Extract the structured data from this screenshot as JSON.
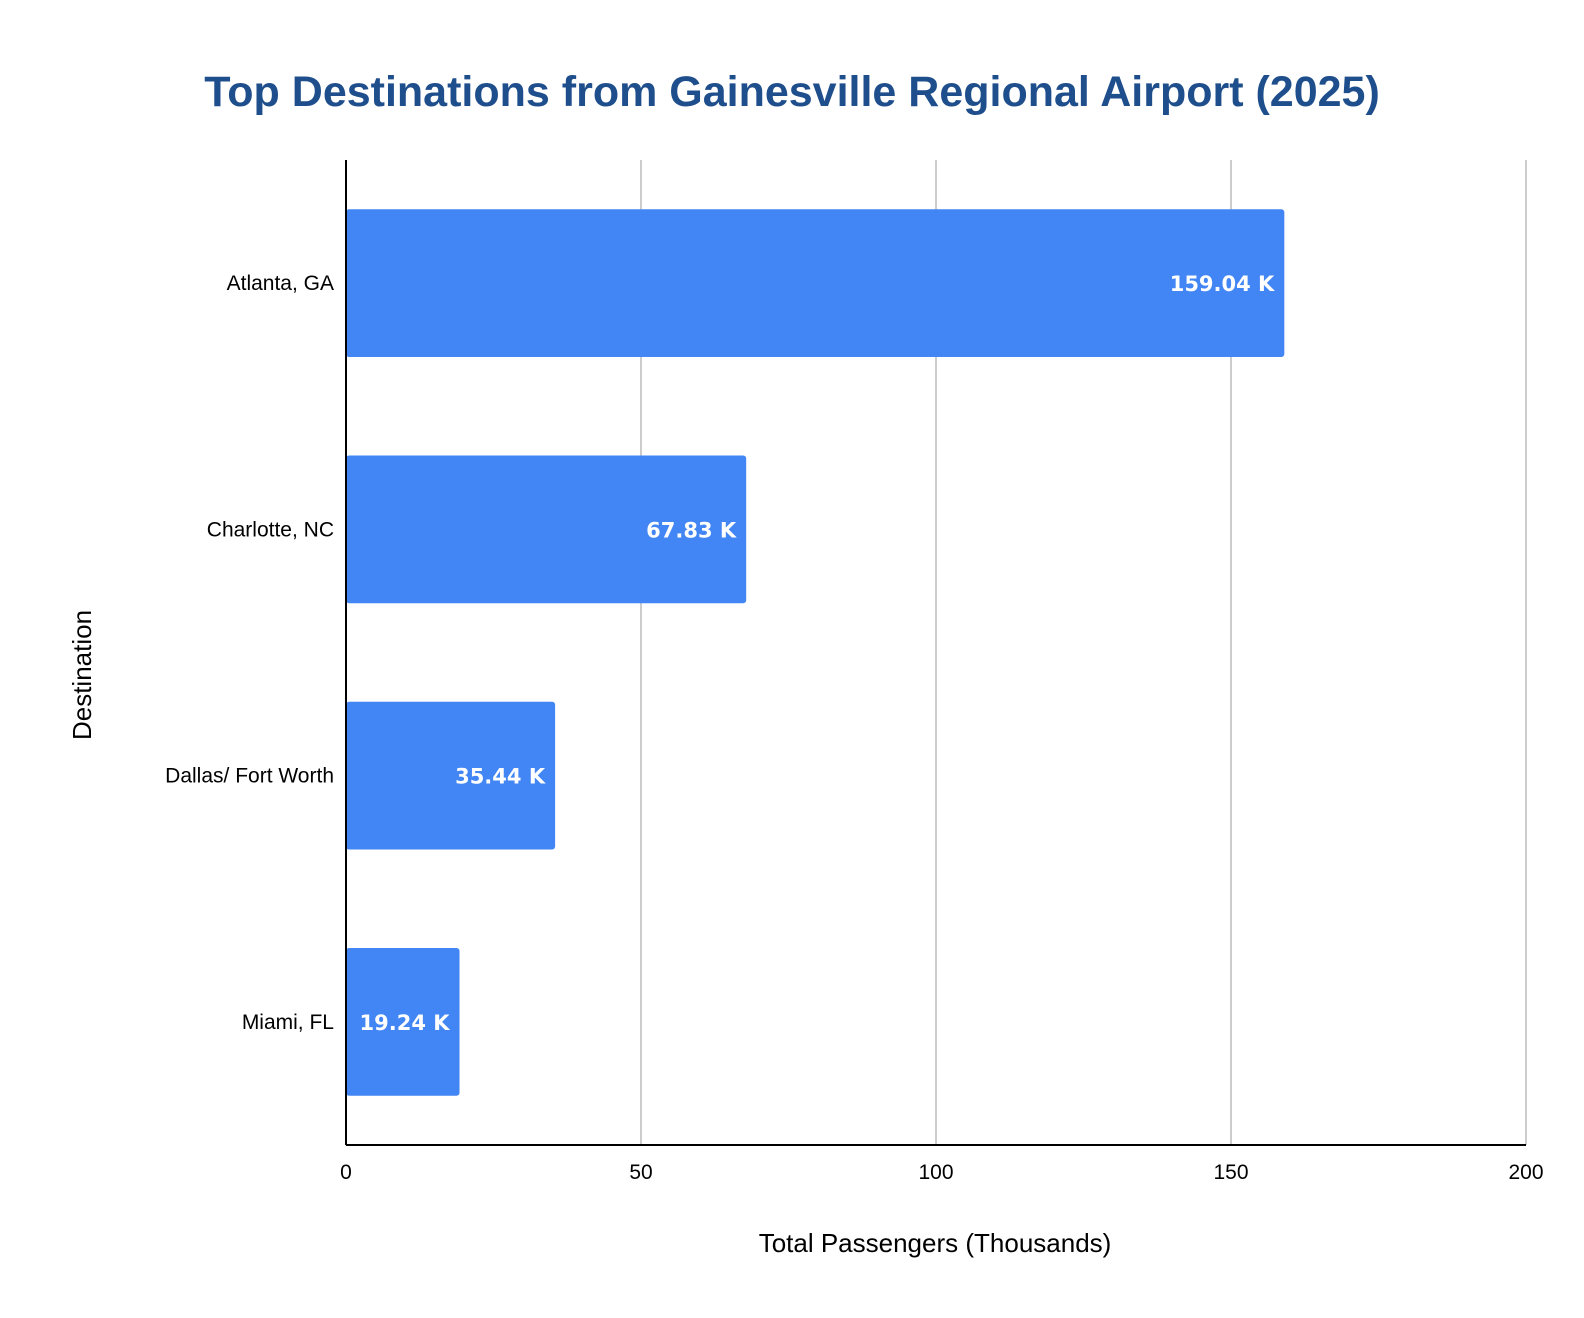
{
  "colors": {
    "bar": "#4285f4",
    "title": "#1f4e8c",
    "grid": "#cccccc",
    "axis": "#000000"
  },
  "chart_data": {
    "type": "bar",
    "orientation": "horizontal",
    "title": "Top Destinations from Gainesville Regional Airport (2025)",
    "xlabel": "Total Passengers (Thousands)",
    "ylabel": "Destination",
    "categories": [
      "Atlanta, GA",
      "Charlotte, NC",
      "Dallas/ Fort Worth",
      "Miami, FL"
    ],
    "values": [
      159.04,
      67.83,
      35.44,
      19.24
    ],
    "data_labels": [
      "159.04 K",
      "67.83 K",
      "35.44 K",
      "19.24 K"
    ],
    "xlim": [
      0,
      200
    ],
    "xticks": [
      0,
      50,
      100,
      150,
      200
    ],
    "xtick_labels": [
      "0",
      "50",
      "100",
      "150",
      "200"
    ],
    "grid": true,
    "legend": "none"
  }
}
